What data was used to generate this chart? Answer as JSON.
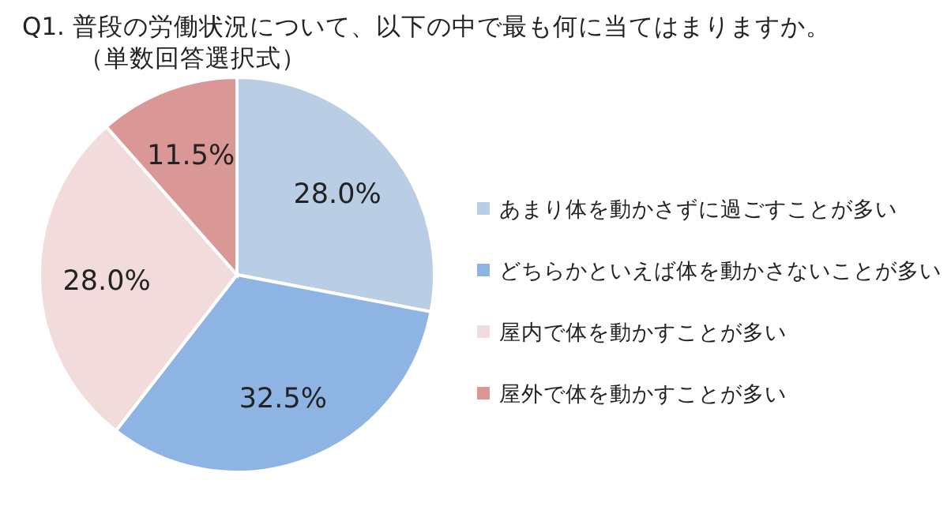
{
  "chart_data": {
    "type": "pie",
    "title": "Q1. 普段の労働状況について、以下の中で最も何に当てはまりますか。",
    "subtitle": "（単数回答選択式）",
    "categories": [
      "あまり体を動かさずに過ごすことが多い",
      "どちらかといえば体を動かさないことが多い",
      "屋内で体を動かすことが多い",
      "屋外で体を動かすことが多い"
    ],
    "values": [
      28.0,
      32.5,
      28.0,
      11.5
    ],
    "colors": [
      "#b9cde5",
      "#8eb4e3",
      "#f2dcdb",
      "#d99795"
    ],
    "value_labels": [
      "28.0%",
      "32.5%",
      "28.0%",
      "11.5%"
    ],
    "legend": "right"
  }
}
